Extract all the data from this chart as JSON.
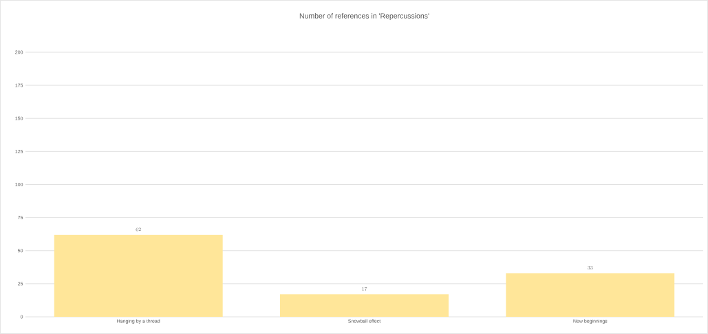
{
  "chart_data": {
    "type": "bar",
    "title": "Number of references in 'Repercussions'",
    "categories": [
      "Hanging by a thread",
      "Snowball effect",
      "New beginnings"
    ],
    "values": [
      62,
      17,
      33
    ],
    "color": "#ffe699",
    "ylim": [
      0,
      200
    ],
    "yticks": [
      0,
      25,
      50,
      75,
      100,
      125,
      150,
      175,
      200
    ],
    "grid": "y",
    "data_labels": true
  }
}
